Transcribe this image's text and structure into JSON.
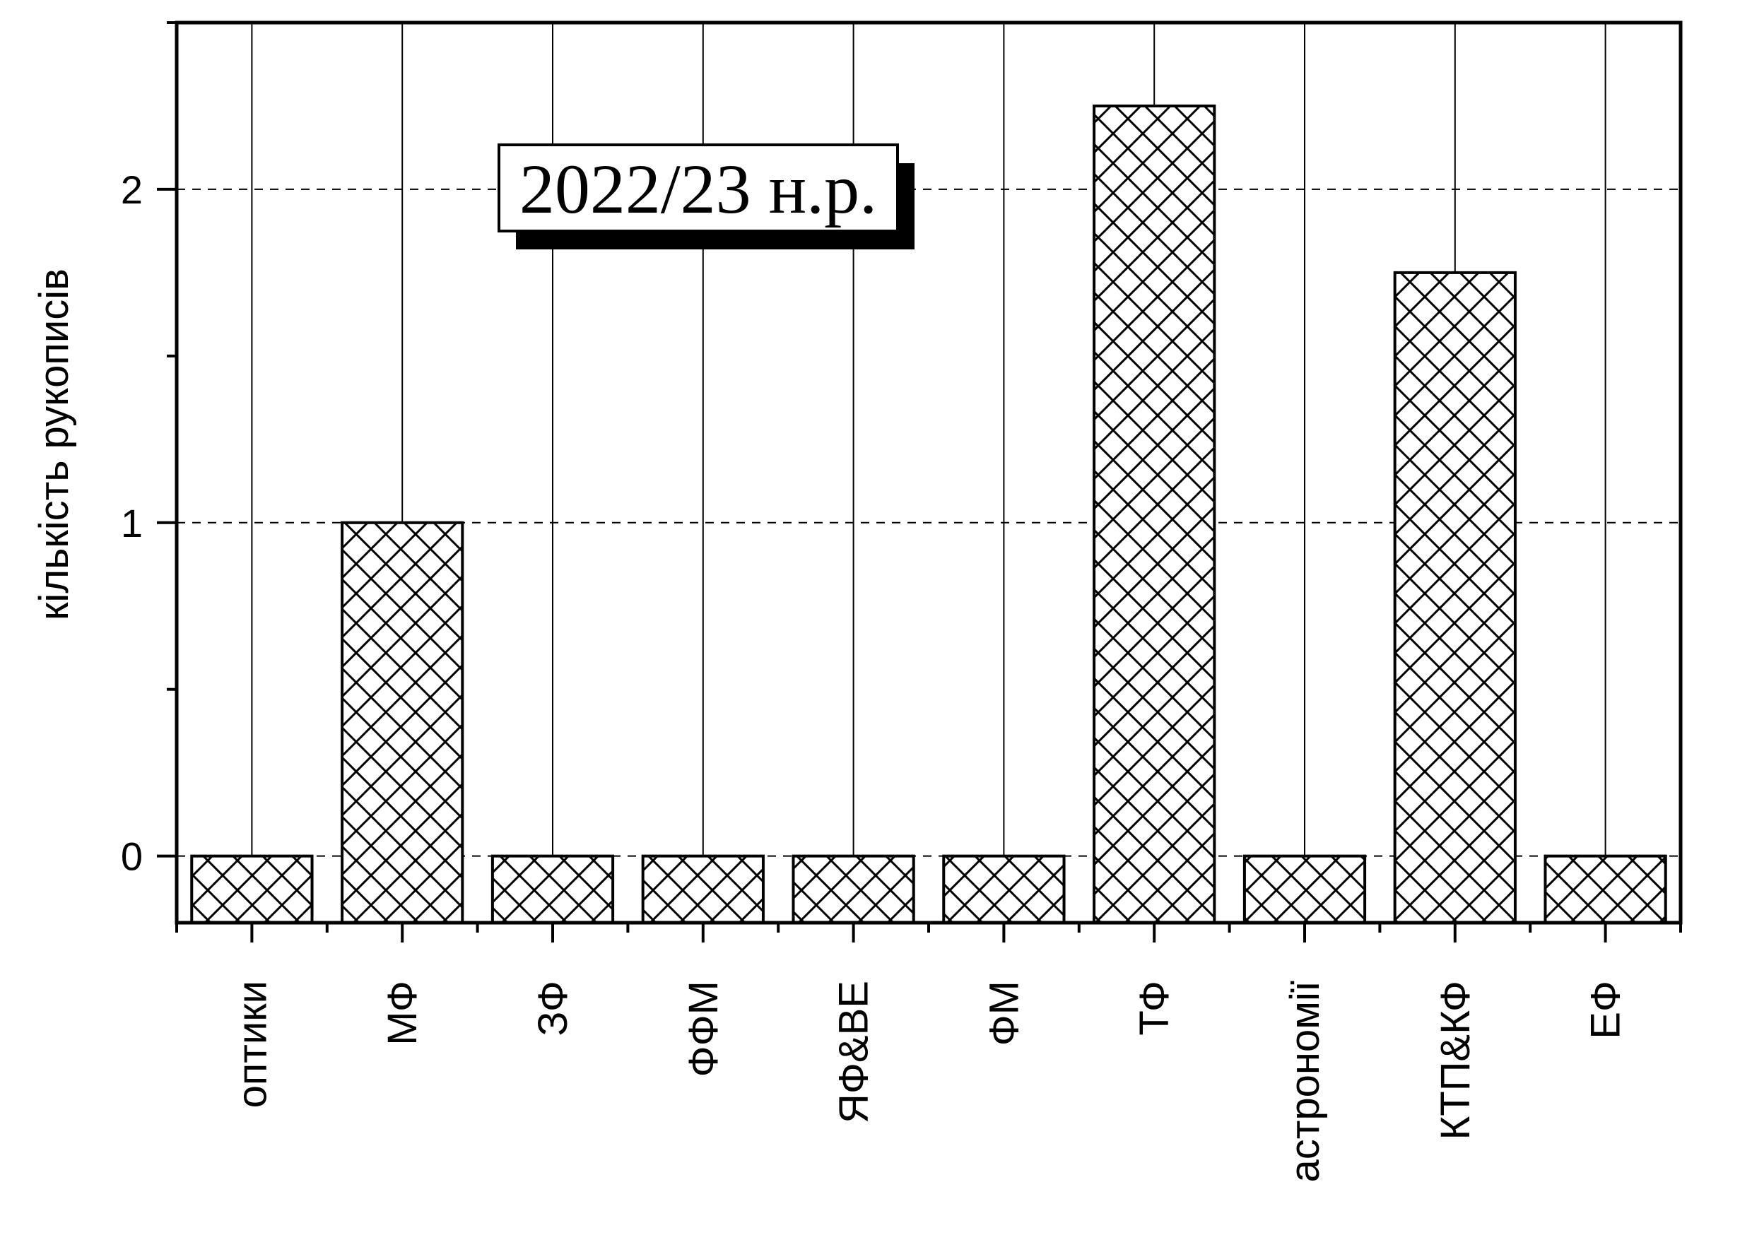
{
  "chart_data": {
    "type": "bar",
    "ylabel": "кількість рукописів",
    "annotation": "2022/23 н.р.",
    "categories": [
      "оптики",
      "МФ",
      "ЗФ",
      "ФФМ",
      "ЯФ&ВЕ",
      "ФМ",
      "ТФ",
      "астрономії",
      "КТП&КФ",
      "ЕФ"
    ],
    "values": [
      0,
      1,
      0,
      0,
      0,
      0,
      2.25,
      0,
      1.75,
      0
    ],
    "ylim": [
      -0.2,
      2.5
    ],
    "yticks": [
      0,
      1,
      2
    ],
    "ytick_labels": [
      "0",
      "1",
      "2"
    ],
    "grid": {
      "horizontal": "dashed",
      "vertical": "solid"
    },
    "bar_fill": "cross-hatch",
    "colors": {
      "bar_stroke": "#000000",
      "background": "#ffffff",
      "grid": "#000000"
    }
  }
}
